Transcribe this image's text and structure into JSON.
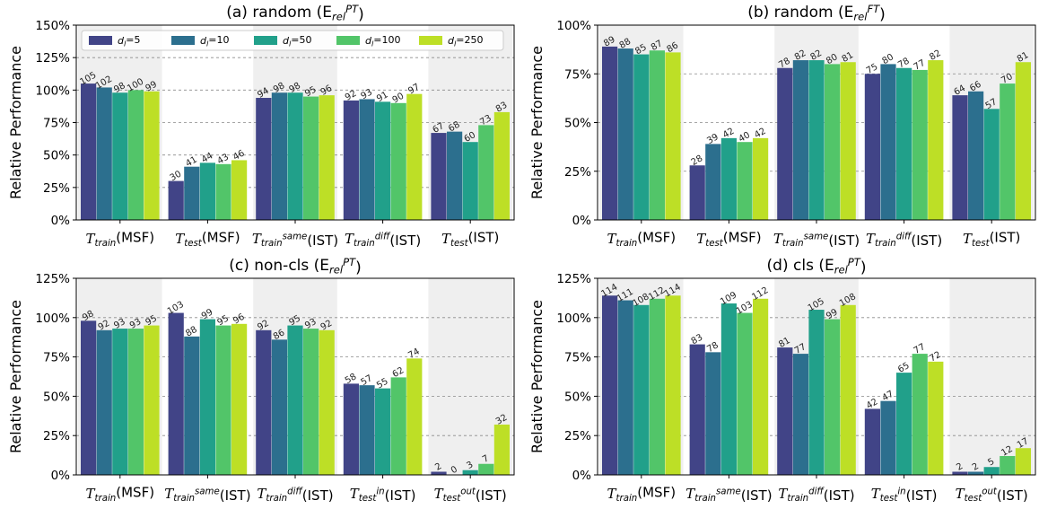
{
  "legend": {
    "entries": [
      "d_l=5",
      "d_l=10",
      "d_l=50",
      "d_l=100",
      "d_l=250"
    ],
    "colors": [
      "#414487",
      "#2c6f8e",
      "#21a08a",
      "#52c569",
      "#bddf26"
    ]
  },
  "chart_data": [
    {
      "type": "bar",
      "title": "(a) random (E_rel^PT)",
      "ylabel": "Relative Performance",
      "ylim": [
        0,
        150
      ],
      "yticks": [
        "0%",
        "25%",
        "50%",
        "75%",
        "100%",
        "125%",
        "150%"
      ],
      "categories": [
        "T_train(MSF)",
        "T_test(MSF)",
        "T_train^same(IST)",
        "T_train^diff(IST)",
        "T_test(IST)"
      ],
      "shaded_groups": [
        0,
        2,
        4
      ],
      "legend_position": "top-left",
      "series": [
        {
          "name": "d_l=5",
          "values": [
            105,
            30,
            94,
            92,
            67
          ]
        },
        {
          "name": "d_l=10",
          "values": [
            102,
            41,
            98,
            93,
            68
          ]
        },
        {
          "name": "d_l=50",
          "values": [
            98,
            44,
            98,
            91,
            60
          ]
        },
        {
          "name": "d_l=100",
          "values": [
            100,
            43,
            95,
            90,
            73
          ]
        },
        {
          "name": "d_l=250",
          "values": [
            99,
            46,
            96,
            97,
            83
          ]
        }
      ]
    },
    {
      "type": "bar",
      "title": "(b) random (E_rel^FT)",
      "ylabel": "Relative Performance",
      "ylim": [
        0,
        100
      ],
      "yticks": [
        "0%",
        "25%",
        "50%",
        "75%",
        "100%"
      ],
      "categories": [
        "T_train(MSF)",
        "T_test(MSF)",
        "T_train^same(IST)",
        "T_train^diff(IST)",
        "T_test(IST)"
      ],
      "shaded_groups": [
        0,
        2,
        4
      ],
      "series": [
        {
          "name": "d_l=5",
          "values": [
            89,
            28,
            78,
            75,
            64
          ]
        },
        {
          "name": "d_l=10",
          "values": [
            88,
            39,
            82,
            80,
            66
          ]
        },
        {
          "name": "d_l=50",
          "values": [
            85,
            42,
            82,
            78,
            57
          ]
        },
        {
          "name": "d_l=100",
          "values": [
            87,
            40,
            80,
            77,
            70
          ]
        },
        {
          "name": "d_l=250",
          "values": [
            86,
            42,
            81,
            82,
            81
          ]
        }
      ]
    },
    {
      "type": "bar",
      "title": "(c) non-cls (E_rel^PT)",
      "ylabel": "Relative Performance",
      "ylim": [
        0,
        125
      ],
      "yticks": [
        "0%",
        "25%",
        "50%",
        "75%",
        "100%",
        "125%"
      ],
      "categories": [
        "T_train(MSF)",
        "T_train^same(IST)",
        "T_train^diff(IST)",
        "T_test^in(IST)",
        "T_test^out(IST)"
      ],
      "shaded_groups": [
        0,
        2,
        4
      ],
      "series": [
        {
          "name": "d_l=5",
          "values": [
            98,
            103,
            92,
            58,
            2
          ]
        },
        {
          "name": "d_l=10",
          "values": [
            92,
            88,
            86,
            57,
            0
          ]
        },
        {
          "name": "d_l=50",
          "values": [
            93,
            99,
            95,
            55,
            3
          ]
        },
        {
          "name": "d_l=100",
          "values": [
            93,
            95,
            93,
            62,
            7
          ]
        },
        {
          "name": "d_l=250",
          "values": [
            95,
            96,
            92,
            74,
            32
          ]
        }
      ]
    },
    {
      "type": "bar",
      "title": "(d) cls (E_rel^PT)",
      "ylabel": "Relative Performance",
      "ylim": [
        0,
        125
      ],
      "yticks": [
        "0%",
        "25%",
        "50%",
        "75%",
        "100%",
        "125%"
      ],
      "categories": [
        "T_train(MSF)",
        "T_train^same(IST)",
        "T_train^diff(IST)",
        "T_test^in(IST)",
        "T_test^out(IST)"
      ],
      "shaded_groups": [
        0,
        2,
        4
      ],
      "series": [
        {
          "name": "d_l=5",
          "values": [
            114,
            83,
            81,
            42,
            2
          ]
        },
        {
          "name": "d_l=10",
          "values": [
            111,
            78,
            77,
            47,
            2
          ]
        },
        {
          "name": "d_l=50",
          "values": [
            108,
            109,
            105,
            65,
            5
          ]
        },
        {
          "name": "d_l=100",
          "values": [
            112,
            103,
            99,
            77,
            12
          ]
        },
        {
          "name": "d_l=250",
          "values": [
            114,
            112,
            108,
            72,
            17
          ]
        }
      ]
    }
  ]
}
